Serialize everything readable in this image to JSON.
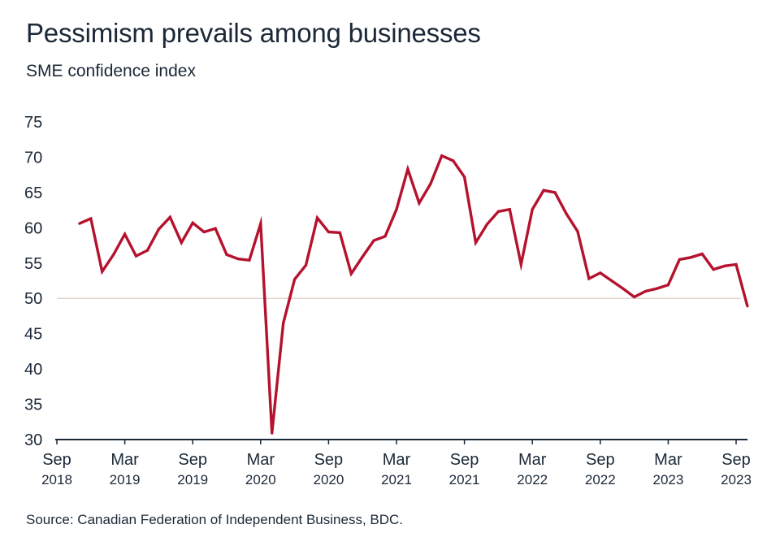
{
  "title": "Pessimism prevails among businesses",
  "subtitle": "SME confidence index",
  "source": "Source: Canadian Federation of Independent Business, BDC.",
  "colors": {
    "line": "#b5122e",
    "axis": "#1b2838",
    "reference": "#e3d3cf"
  },
  "chart_data": {
    "type": "line",
    "title": "Pessimism prevails among businesses",
    "subtitle": "SME confidence index",
    "ylim": [
      30,
      75
    ],
    "yticks": [
      "30",
      "35",
      "40",
      "45",
      "50",
      "55",
      "60",
      "65",
      "70",
      "75"
    ],
    "reference_line": 50,
    "grid": false,
    "xticks": [
      {
        "month": "Sep",
        "year": "2018",
        "date": "2018-09"
      },
      {
        "month": "Mar",
        "year": "2019",
        "date": "2019-03"
      },
      {
        "month": "Sep",
        "year": "2019",
        "date": "2019-09"
      },
      {
        "month": "Mar",
        "year": "2020",
        "date": "2020-03"
      },
      {
        "month": "Sep",
        "year": "2020",
        "date": "2020-09"
      },
      {
        "month": "Mar",
        "year": "2021",
        "date": "2021-03"
      },
      {
        "month": "Sep",
        "year": "2021",
        "date": "2021-09"
      },
      {
        "month": "Mar",
        "year": "2022",
        "date": "2022-03"
      },
      {
        "month": "Sep",
        "year": "2022",
        "date": "2022-09"
      },
      {
        "month": "Mar",
        "year": "2023",
        "date": "2023-03"
      },
      {
        "month": "Sep",
        "year": "2023",
        "date": "2023-09"
      }
    ],
    "series": [
      {
        "points": [
          [
            "2018-11",
            60.6
          ],
          [
            "2018-12",
            61.3
          ],
          [
            "2019-01",
            53.8
          ],
          [
            "2019-02",
            56.2
          ],
          [
            "2019-03",
            59.1
          ],
          [
            "2019-04",
            56.0
          ],
          [
            "2019-05",
            56.8
          ],
          [
            "2019-06",
            59.8
          ],
          [
            "2019-07",
            61.5
          ],
          [
            "2019-08",
            57.9
          ],
          [
            "2019-09",
            60.7
          ],
          [
            "2019-10",
            59.4
          ],
          [
            "2019-11",
            59.9
          ],
          [
            "2019-12",
            56.2
          ],
          [
            "2020-01",
            55.6
          ],
          [
            "2020-02",
            55.4
          ],
          [
            "2020-03",
            60.6
          ],
          [
            "2020-04",
            30.9
          ],
          [
            "2020-05",
            46.5
          ],
          [
            "2020-06",
            52.7
          ],
          [
            "2020-07",
            54.7
          ],
          [
            "2020-08",
            61.4
          ],
          [
            "2020-09",
            59.4
          ],
          [
            "2020-10",
            59.3
          ],
          [
            "2020-11",
            53.5
          ],
          [
            "2020-12",
            55.9
          ],
          [
            "2021-01",
            58.2
          ],
          [
            "2021-02",
            58.8
          ],
          [
            "2021-03",
            62.6
          ],
          [
            "2021-04",
            68.3
          ],
          [
            "2021-05",
            63.5
          ],
          [
            "2021-06",
            66.2
          ],
          [
            "2021-07",
            70.2
          ],
          [
            "2021-08",
            69.5
          ],
          [
            "2021-09",
            67.2
          ],
          [
            "2021-10",
            57.9
          ],
          [
            "2021-11",
            60.5
          ],
          [
            "2021-12",
            62.3
          ],
          [
            "2022-01",
            62.6
          ],
          [
            "2022-02",
            54.8
          ],
          [
            "2022-03",
            62.6
          ],
          [
            "2022-04",
            65.3
          ],
          [
            "2022-05",
            65.0
          ],
          [
            "2022-06",
            62.0
          ],
          [
            "2022-07",
            59.5
          ],
          [
            "2022-08",
            52.8
          ],
          [
            "2022-09",
            53.6
          ],
          [
            "2022-10",
            52.5
          ],
          [
            "2022-11",
            51.4
          ],
          [
            "2022-12",
            50.2
          ],
          [
            "2023-01",
            51.0
          ],
          [
            "2023-02",
            51.4
          ],
          [
            "2023-03",
            51.9
          ],
          [
            "2023-04",
            55.5
          ],
          [
            "2023-05",
            55.8
          ],
          [
            "2023-06",
            56.3
          ],
          [
            "2023-07",
            54.1
          ],
          [
            "2023-08",
            54.6
          ],
          [
            "2023-09",
            54.8
          ],
          [
            "2023-10",
            48.9
          ]
        ]
      }
    ]
  }
}
